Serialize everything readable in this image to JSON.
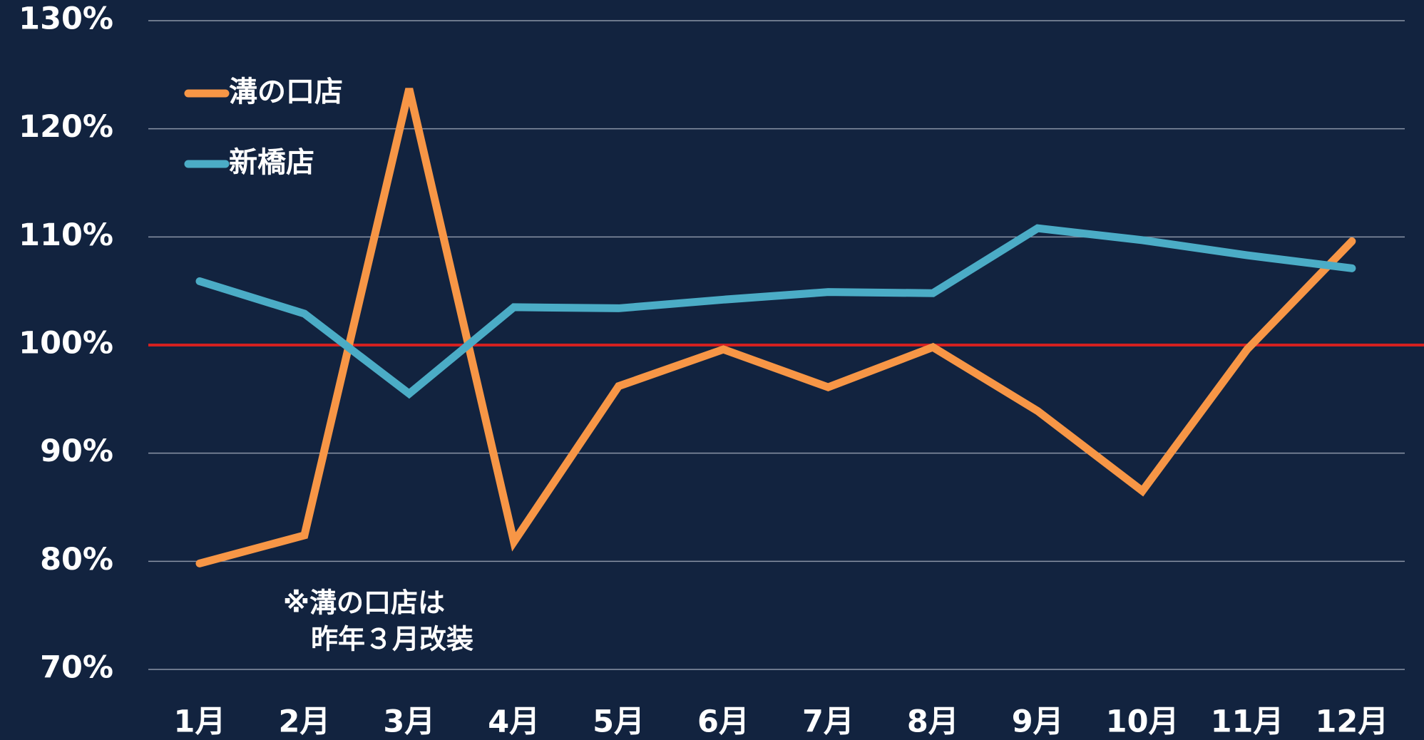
{
  "chart_data": {
    "type": "line",
    "categories": [
      "1月",
      "2月",
      "3月",
      "4月",
      "5月",
      "6月",
      "7月",
      "8月",
      "9月",
      "10月",
      "11月",
      "12月"
    ],
    "series": [
      {
        "name": "溝の口店",
        "color": "#f79646",
        "values": [
          79.8,
          82.4,
          123.7,
          81.8,
          96.2,
          99.6,
          96.1,
          99.8,
          93.9,
          86.5,
          99.6,
          109.6
        ]
      },
      {
        "name": "新橋店",
        "color": "#4bacc6",
        "values": [
          105.9,
          102.9,
          95.5,
          103.5,
          103.4,
          104.2,
          104.9,
          104.8,
          110.8,
          109.7,
          108.3,
          107.1
        ]
      }
    ],
    "ylim": [
      70,
      130
    ],
    "yticks": [
      {
        "value": 70,
        "label": "70%"
      },
      {
        "value": 80,
        "label": "80%"
      },
      {
        "value": 90,
        "label": "90%"
      },
      {
        "value": 100,
        "label": "100%"
      },
      {
        "value": 110,
        "label": "110%"
      },
      {
        "value": 120,
        "label": "120%"
      },
      {
        "value": 130,
        "label": "130%"
      }
    ],
    "grid": true,
    "reference_line": {
      "value": 100,
      "color": "#d42020"
    },
    "annotation": [
      "※溝の口店は",
      "昨年３月改装"
    ],
    "legend": "upper left"
  }
}
